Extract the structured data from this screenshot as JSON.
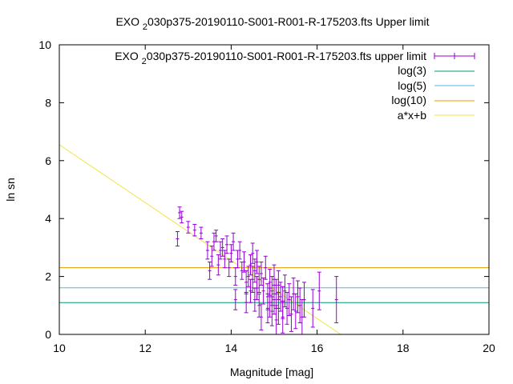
{
  "chart_data": {
    "type": "scatter",
    "title": "EXO 2030p375-20190110-S001-R001-R-175203.fts Upper limit",
    "title_parts": {
      "before": "EXO ",
      "sub": "2",
      "after": "030p375-20190110-S001-R001-R-175203.fts Upper limit"
    },
    "xlabel": "Magnitude [mag]",
    "ylabel": "ln sn",
    "xlim": [
      10,
      20
    ],
    "ylim": [
      0,
      10
    ],
    "xticks": [
      10,
      12,
      14,
      16,
      18,
      20
    ],
    "yticks": [
      0,
      2,
      4,
      6,
      8,
      10
    ],
    "grid": false,
    "legend_position": "top-right",
    "series": [
      {
        "name": "EXO 2030p375-20190110-S001-R001-R-175203.fts upper limit",
        "name_parts": {
          "before": "EXO ",
          "sub": "2",
          "after": "030p375-20190110-S001-R001-R-175203.fts upper limit"
        },
        "kind": "errorbars",
        "color": "#9400d3",
        "points": [
          [
            12.75,
            3.3,
            0.25
          ],
          [
            12.8,
            4.2,
            0.2
          ],
          [
            12.85,
            4.05,
            0.2
          ],
          [
            13.0,
            3.7,
            0.2
          ],
          [
            13.15,
            3.6,
            0.2
          ],
          [
            13.3,
            3.5,
            0.2
          ],
          [
            13.45,
            2.9,
            0.3
          ],
          [
            13.5,
            2.2,
            0.3
          ],
          [
            13.55,
            2.7,
            0.35
          ],
          [
            13.6,
            3.2,
            0.3
          ],
          [
            13.65,
            3.4,
            0.2
          ],
          [
            13.7,
            2.4,
            0.35
          ],
          [
            13.75,
            2.9,
            0.3
          ],
          [
            13.8,
            3.0,
            0.3
          ],
          [
            13.85,
            2.6,
            0.3
          ],
          [
            13.9,
            3.1,
            0.3
          ],
          [
            13.95,
            2.3,
            0.3
          ],
          [
            14.0,
            2.8,
            0.3
          ],
          [
            14.05,
            3.2,
            0.3
          ],
          [
            14.1,
            2.0,
            0.3
          ],
          [
            14.1,
            1.2,
            0.35
          ],
          [
            14.15,
            2.6,
            0.3
          ],
          [
            14.2,
            2.9,
            0.3
          ],
          [
            14.25,
            2.2,
            0.3
          ],
          [
            14.3,
            2.5,
            0.35
          ],
          [
            14.35,
            1.8,
            0.4
          ],
          [
            14.35,
            1.1,
            0.35
          ],
          [
            14.4,
            2.0,
            0.35
          ],
          [
            14.45,
            2.4,
            0.35
          ],
          [
            14.45,
            1.5,
            0.4
          ],
          [
            14.5,
            2.8,
            0.35
          ],
          [
            14.5,
            1.9,
            0.45
          ],
          [
            14.55,
            1.2,
            0.4
          ],
          [
            14.55,
            2.2,
            0.4
          ],
          [
            14.6,
            1.6,
            0.4
          ],
          [
            14.6,
            2.5,
            0.4
          ],
          [
            14.65,
            1.0,
            0.4
          ],
          [
            14.65,
            1.9,
            0.45
          ],
          [
            14.7,
            2.1,
            0.4
          ],
          [
            14.7,
            0.6,
            0.45
          ],
          [
            14.75,
            1.5,
            0.45
          ],
          [
            14.8,
            2.3,
            0.4
          ],
          [
            14.85,
            1.3,
            0.45
          ],
          [
            14.85,
            0.9,
            0.5
          ],
          [
            14.9,
            1.8,
            0.45
          ],
          [
            14.9,
            1.1,
            0.5
          ],
          [
            14.95,
            1.5,
            0.5
          ],
          [
            14.95,
            0.8,
            0.5
          ],
          [
            15.0,
            1.9,
            0.5
          ],
          [
            15.0,
            1.2,
            0.5
          ],
          [
            15.05,
            1.4,
            0.5
          ],
          [
            15.05,
            0.5,
            0.5
          ],
          [
            15.1,
            1.7,
            0.5
          ],
          [
            15.1,
            0.9,
            0.55
          ],
          [
            15.15,
            1.3,
            0.5
          ],
          [
            15.2,
            1.1,
            0.55
          ],
          [
            15.2,
            0.6,
            0.55
          ],
          [
            15.25,
            1.5,
            0.55
          ],
          [
            15.3,
            0.9,
            0.55
          ],
          [
            15.35,
            1.2,
            0.55
          ],
          [
            15.4,
            0.7,
            0.6
          ],
          [
            15.45,
            1.4,
            0.55
          ],
          [
            15.5,
            0.8,
            0.6
          ],
          [
            15.55,
            1.3,
            0.55
          ],
          [
            15.6,
            1.0,
            0.6
          ],
          [
            15.65,
            0.6,
            0.6
          ],
          [
            15.7,
            1.2,
            0.6
          ],
          [
            15.9,
            0.9,
            0.65
          ],
          [
            16.05,
            1.5,
            0.65
          ],
          [
            16.45,
            1.2,
            0.8
          ]
        ]
      },
      {
        "name": "log(3)",
        "kind": "hline",
        "value": 1.0986,
        "color": "#009e73"
      },
      {
        "name": "log(5)",
        "kind": "hline",
        "value": 1.6094,
        "color": "#56b4e9"
      },
      {
        "name": "log(10)",
        "kind": "hline",
        "value": 2.3026,
        "color": "#e69f00"
      },
      {
        "name": "a*x+b",
        "kind": "fit_line",
        "x_range": [
          10,
          16.55
        ],
        "y_range": [
          6.55,
          0
        ],
        "color": "#f0e442"
      }
    ]
  }
}
